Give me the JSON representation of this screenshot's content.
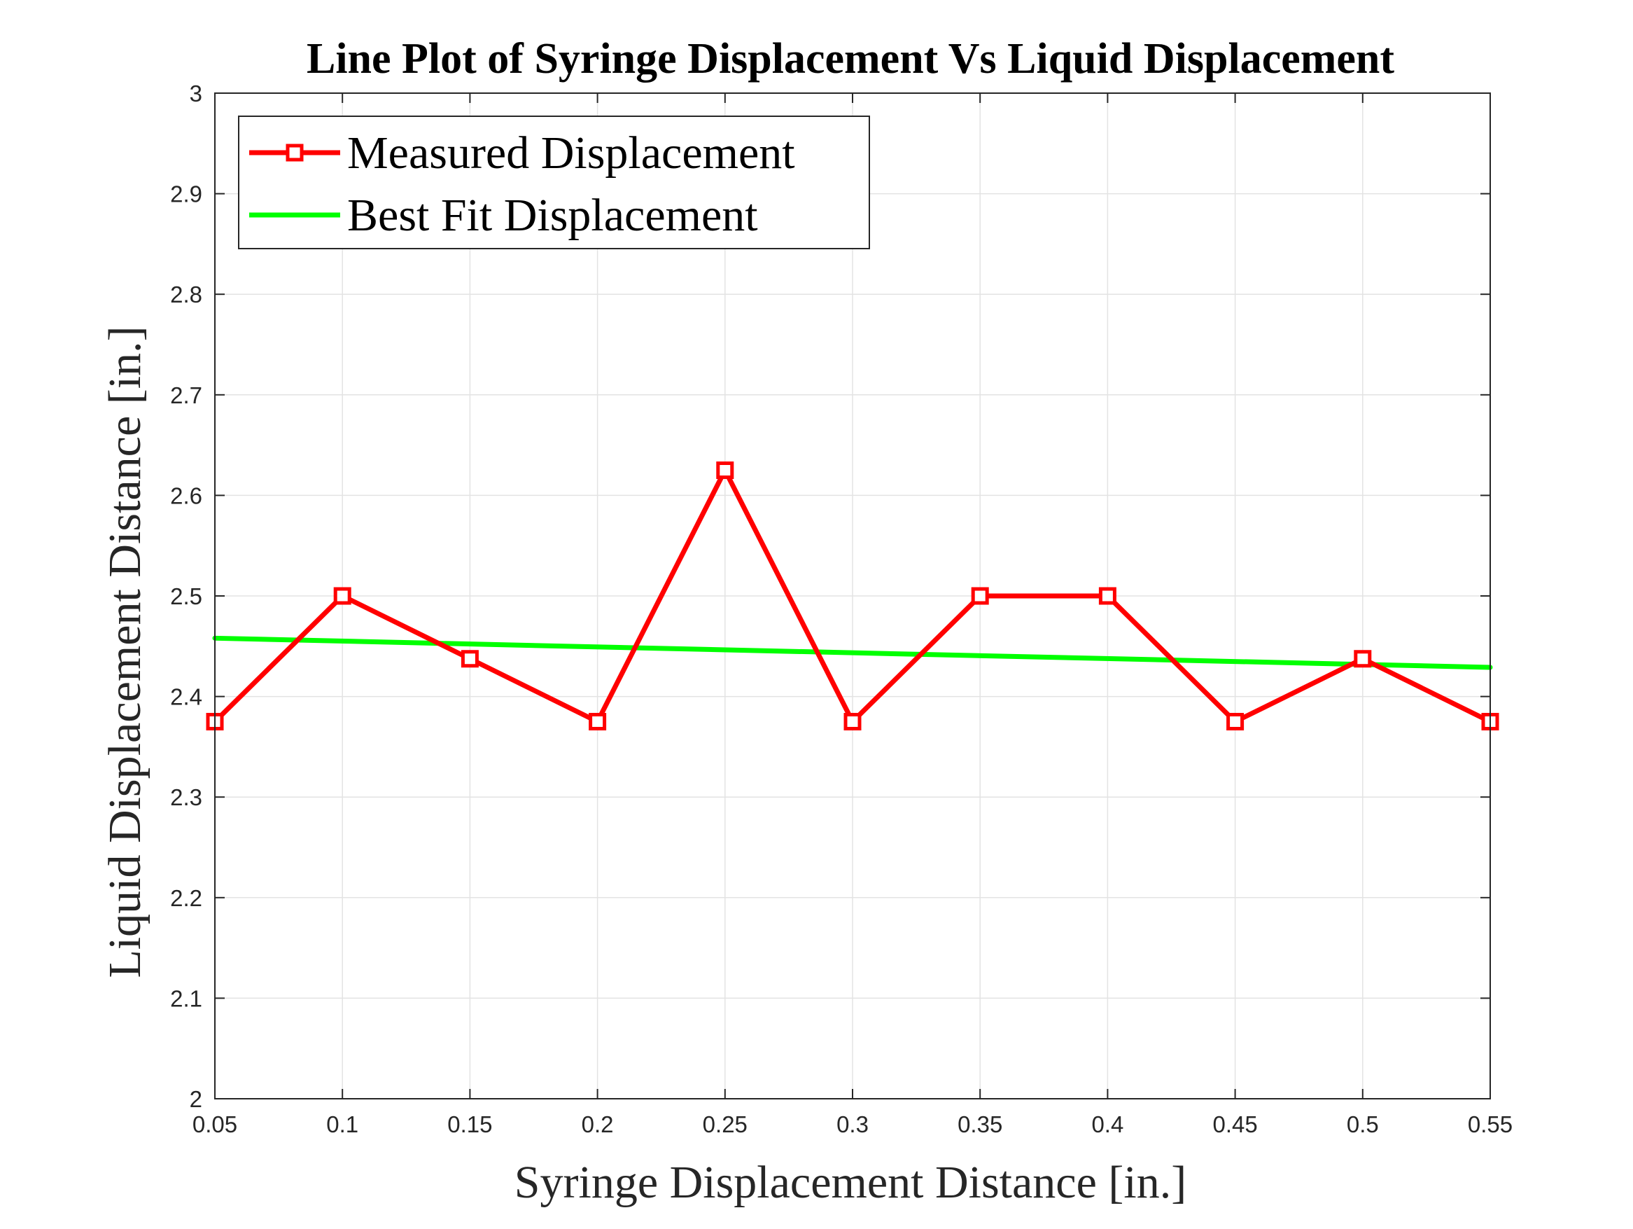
{
  "chart_data": {
    "type": "line",
    "title": "Line Plot of Syringe Displacement Vs Liquid Displacement",
    "xlabel": "Syringe Displacement Distance [in.]",
    "ylabel": "Liquid Displacement Distance [in.]",
    "xlim": [
      0.05,
      0.55
    ],
    "ylim": [
      2,
      3
    ],
    "xticks": [
      "0.05",
      "0.1",
      "0.15",
      "0.2",
      "0.25",
      "0.3",
      "0.35",
      "0.4",
      "0.45",
      "0.5",
      "0.55"
    ],
    "yticks": [
      "2",
      "2.1",
      "2.2",
      "2.3",
      "2.4",
      "2.5",
      "2.6",
      "2.7",
      "2.8",
      "2.9",
      "3"
    ],
    "grid": true,
    "legend_position": "top-left",
    "series": [
      {
        "name": "Measured Displacement",
        "color": "#ff0000",
        "marker": "square",
        "x": [
          0.05,
          0.1,
          0.15,
          0.2,
          0.25,
          0.3,
          0.35,
          0.4,
          0.45,
          0.5,
          0.55
        ],
        "y": [
          2.375,
          2.5,
          2.4375,
          2.375,
          2.625,
          2.375,
          2.5,
          2.5,
          2.375,
          2.4375,
          2.375
        ]
      },
      {
        "name": "Best Fit Displacement",
        "color": "#00ff00",
        "marker": "none",
        "x": [
          0.05,
          0.55
        ],
        "y": [
          2.458,
          2.429
        ]
      }
    ]
  }
}
